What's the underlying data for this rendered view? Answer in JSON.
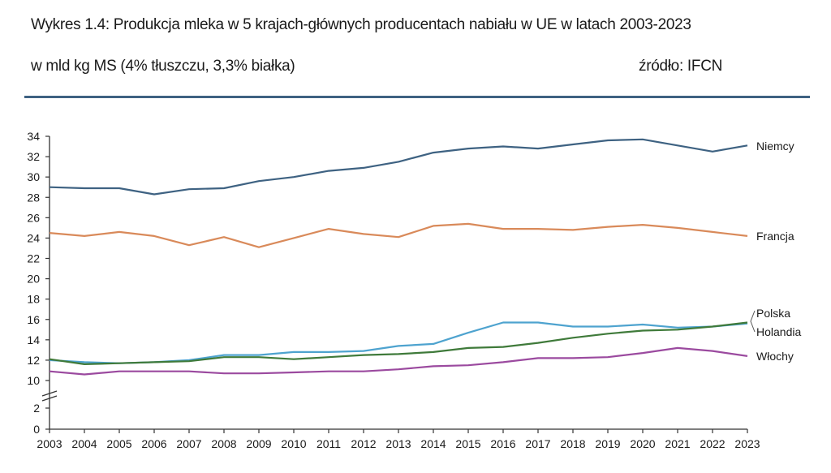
{
  "header": {
    "title": "Wykres 1.4: Produkcja mleka w 5 krajach-głównych producentach nabiału w UE w latach 2003-2023",
    "subtitle": "w mld kg MS (4% tłuszczu, 3,3% białka)",
    "source": "źródło: IFCN",
    "separator_color": "#3e6282"
  },
  "chart_data": {
    "type": "line",
    "title": "Produkcja mleka w 5 krajach-głównych producentach nabiału w UE w latach 2003-2023",
    "xlabel": "",
    "ylabel": "mld kg MS",
    "x": [
      2003,
      2004,
      2005,
      2006,
      2007,
      2008,
      2009,
      2010,
      2011,
      2012,
      2013,
      2014,
      2015,
      2016,
      2017,
      2018,
      2019,
      2020,
      2021,
      2022,
      2023
    ],
    "x_tick_labels": [
      "2003",
      "2004",
      "2005",
      "2006",
      "2007",
      "2008",
      "2009",
      "2010",
      "2011",
      "2012",
      "2013",
      "2014",
      "2015",
      "2016",
      "2017",
      "2018",
      "2019",
      "2020",
      "2021",
      "2022",
      "2023"
    ],
    "y_tick_labels": [
      "0",
      "2",
      "10",
      "12",
      "14",
      "16",
      "18",
      "20",
      "22",
      "24",
      "26",
      "28",
      "30",
      "32",
      "34"
    ],
    "y_ticks": [
      0,
      2,
      10,
      12,
      14,
      16,
      18,
      20,
      22,
      24,
      26,
      28,
      30,
      32,
      34
    ],
    "ylim": [
      0,
      34
    ],
    "y_axis_break": [
      2,
      10
    ],
    "grid": false,
    "legend": "inline labels at right end of each line",
    "series": [
      {
        "name": "Niemcy",
        "color": "#3e6282",
        "values": [
          29.0,
          28.9,
          28.9,
          28.3,
          28.8,
          28.9,
          29.6,
          30.0,
          30.6,
          30.9,
          31.5,
          32.4,
          32.8,
          33.0,
          32.8,
          33.2,
          33.6,
          33.7,
          33.1,
          32.5,
          33.1
        ]
      },
      {
        "name": "Francja",
        "color": "#d98a5a",
        "values": [
          24.5,
          24.2,
          24.6,
          24.2,
          23.3,
          24.1,
          23.1,
          24.0,
          24.9,
          24.4,
          24.1,
          25.2,
          25.4,
          24.9,
          24.9,
          24.8,
          25.1,
          25.3,
          25.0,
          24.6,
          24.2
        ]
      },
      {
        "name": "Polska",
        "color": "#4ea3cf",
        "values": [
          12.0,
          11.8,
          11.7,
          11.8,
          12.0,
          12.5,
          12.5,
          12.8,
          12.8,
          12.9,
          13.4,
          13.6,
          14.7,
          15.7,
          15.7,
          15.3,
          15.3,
          15.5,
          15.2,
          15.3,
          15.6
        ]
      },
      {
        "name": "Holandia",
        "color": "#3f7a3a",
        "values": [
          12.1,
          11.6,
          11.7,
          11.8,
          11.9,
          12.3,
          12.3,
          12.1,
          12.3,
          12.5,
          12.6,
          12.8,
          13.2,
          13.3,
          13.7,
          14.2,
          14.6,
          14.9,
          15.0,
          15.3,
          15.7
        ]
      },
      {
        "name": "Włochy",
        "color": "#9b4a9f",
        "values": [
          10.9,
          10.6,
          10.9,
          10.9,
          10.9,
          10.7,
          10.7,
          10.8,
          10.9,
          10.9,
          11.1,
          11.4,
          11.5,
          11.8,
          12.2,
          12.2,
          12.3,
          12.7,
          13.2,
          12.9,
          12.4
        ]
      }
    ]
  }
}
